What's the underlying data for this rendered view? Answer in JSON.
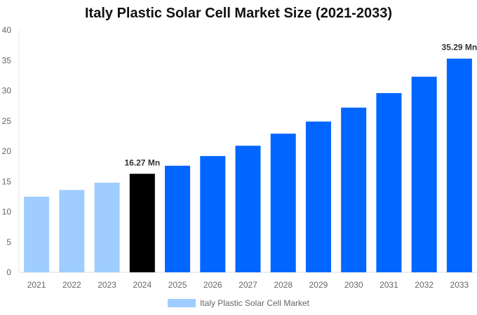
{
  "chart_data": {
    "type": "bar",
    "title": "Italy Plastic Solar Cell Market Size (2021-2033)",
    "categories": [
      "2021",
      "2022",
      "2023",
      "2024",
      "2025",
      "2026",
      "2027",
      "2028",
      "2029",
      "2030",
      "2031",
      "2032",
      "2033"
    ],
    "series": [
      {
        "name": "Italy Plastic Solar Cell Market",
        "values": [
          12.5,
          13.6,
          14.8,
          16.27,
          17.6,
          19.2,
          20.9,
          22.9,
          24.9,
          27.2,
          29.6,
          32.3,
          35.29
        ]
      }
    ],
    "bar_colors": [
      "#a0cdff",
      "#a0cdff",
      "#a0cdff",
      "#000000",
      "#0066ff",
      "#0066ff",
      "#0066ff",
      "#0066ff",
      "#0066ff",
      "#0066ff",
      "#0066ff",
      "#0066ff",
      "#0066ff"
    ],
    "data_labels": {
      "3": "16.27 Mn",
      "12": "35.29 Mn"
    },
    "yticks": [
      0,
      5,
      10,
      15,
      20,
      25,
      30,
      35,
      40
    ],
    "ylim": [
      0,
      40
    ],
    "xlabel": "",
    "ylabel": "",
    "grid": false,
    "legend_position": "bottom",
    "legend_color": "#a0cdff"
  }
}
